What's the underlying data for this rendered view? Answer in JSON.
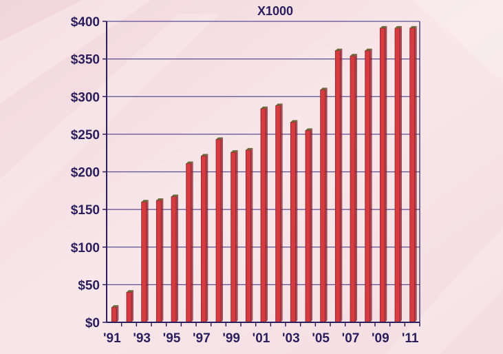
{
  "chart_data": {
    "type": "bar",
    "title": "X1000",
    "xlabel": "",
    "ylabel": "",
    "ylim": [
      0,
      400
    ],
    "yticks": [
      0,
      50,
      100,
      150,
      200,
      250,
      300,
      350,
      400
    ],
    "ytick_labels": [
      "$0",
      "$50",
      "$100",
      "$150",
      "$200",
      "$250",
      "$300",
      "$350",
      "$400"
    ],
    "categories": [
      "1991",
      "1992",
      "1993",
      "1994",
      "1995",
      "1996",
      "1997",
      "1998",
      "1999",
      "2000",
      "2001",
      "2002",
      "2003",
      "2004",
      "2005",
      "2006",
      "2007",
      "2008",
      "2009",
      "2010",
      "2011"
    ],
    "xtick_labels": [
      "'91",
      "",
      "'93",
      "",
      "'95",
      "",
      "'97",
      "",
      "'99",
      "",
      "'01",
      "",
      "'03",
      "",
      "'05",
      "",
      "'07",
      "",
      "'09",
      "",
      "'11"
    ],
    "values": [
      20,
      40,
      160,
      162,
      167,
      211,
      221,
      243,
      226,
      229,
      284,
      288,
      266,
      255,
      309,
      361,
      354,
      361,
      391,
      391,
      391
    ],
    "grid": true,
    "colors": {
      "bar": "#d63b3f",
      "bar_top": "#6b6a3a",
      "bar_edge": "#8a1c2a",
      "grid": "#5a4f8f",
      "axis": "#2a1e5c",
      "text": "#2a1e5c",
      "background": "#f6e3e6"
    }
  }
}
